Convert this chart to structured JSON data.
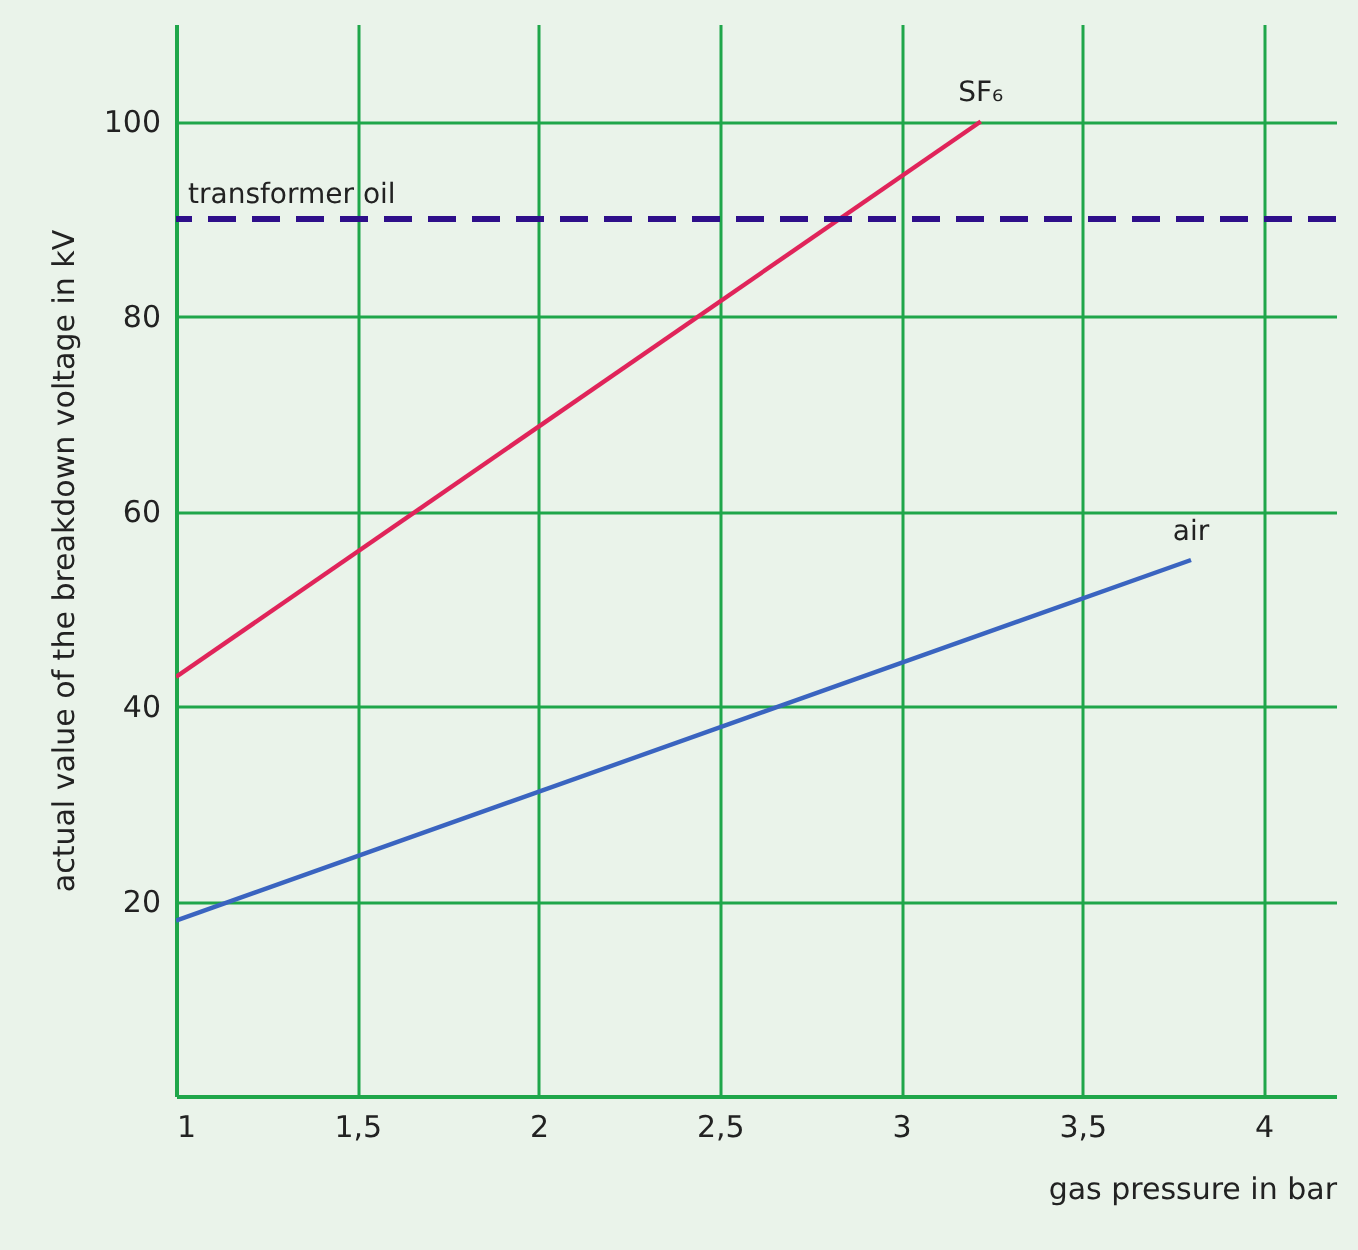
{
  "chart_data": {
    "type": "line",
    "xlabel": "gas pressure in bar",
    "ylabel": "actual value of the breakdown voltage in kV",
    "xlim": [
      1,
      4.2
    ],
    "ylim": [
      0,
      110
    ],
    "xticks": [
      1,
      {
        "value": 1.5,
        "label": "1,5"
      },
      2,
      {
        "value": 2.5,
        "label": "2,5"
      },
      3,
      {
        "value": 3.5,
        "label": "3,5"
      },
      4
    ],
    "yticks": [
      20,
      40,
      60,
      80,
      100
    ],
    "series": [
      {
        "name": "SF₆",
        "color": "#e0245a",
        "x": [
          1,
          3.22
        ],
        "values": [
          43,
          100
        ]
      },
      {
        "name": "air",
        "color": "#3a64c0",
        "x": [
          1,
          3.8
        ],
        "values": [
          18,
          55
        ]
      }
    ],
    "ref_lines": [
      {
        "axis": "y",
        "value": 90,
        "label": "transformer oil",
        "color": "#2e0f8a",
        "line_style": "dashed"
      }
    ],
    "grid": true,
    "marker": "none",
    "line_style": "solid"
  }
}
